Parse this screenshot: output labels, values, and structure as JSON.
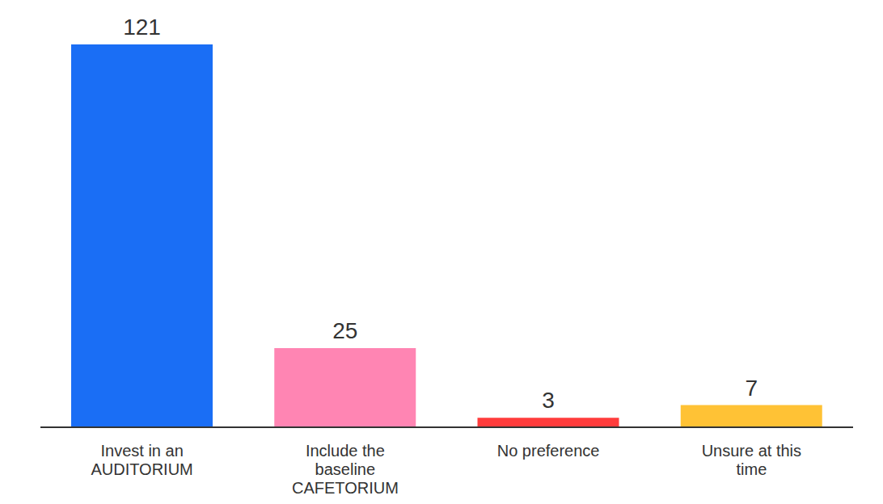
{
  "chart_data": {
    "type": "bar",
    "categories": [
      "Invest in an AUDITORIUM",
      "Include the baseline CAFETORIUM",
      "No preference",
      "Unsure at this time"
    ],
    "values": [
      121,
      25,
      3,
      7
    ],
    "colors": [
      "#1a6ef5",
      "#ff85b3",
      "#ff3c3c",
      "#ffc235"
    ],
    "data_labels": true,
    "tick_labels": "x",
    "grid": false
  }
}
